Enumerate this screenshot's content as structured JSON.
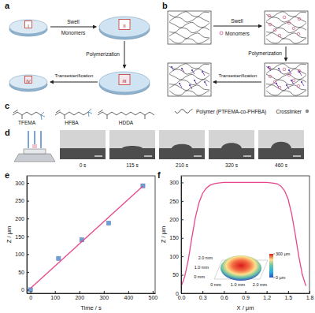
{
  "panels": {
    "a": {
      "label": "a",
      "stages": [
        "I",
        "II",
        "III",
        "IV"
      ],
      "steps": {
        "swell": "Swell",
        "monomers": "Monomers",
        "polymerization": "Polymerization",
        "transesterification": "Transesterification"
      }
    },
    "b": {
      "label": "b",
      "steps": {
        "swell": "Swell",
        "monomers": "Monomers",
        "polymerization": "Polymerization",
        "transesterification": "Transesterification"
      }
    },
    "c": {
      "label": "c",
      "items": [
        "TFEMA",
        "HFBA",
        "HDDA",
        "Polymer (PTFEMA-co-PHFBA)",
        "Crosslinker"
      ]
    },
    "d": {
      "label": "d",
      "frames": [
        "0 s",
        "115 s",
        "210 s",
        "320 s",
        "460 s"
      ]
    },
    "e": {
      "label": "e"
    },
    "f": {
      "label": "f",
      "inset": {
        "y_labels": [
          "2.0 mm",
          "1.0 mm",
          "0 mm"
        ],
        "x_labels": [
          "0 mm",
          "1.0 mm",
          "2.0 mm"
        ],
        "colorbar": {
          "range": [
            0,
            300
          ],
          "ticks": [
            {
              "value": 300,
              "label": "300 μm"
            },
            {
              "value": 0,
              "label": "0 μm"
            }
          ]
        }
      }
    }
  },
  "chart_data": [
    {
      "type": "scatter",
      "x_label": "Time / s",
      "y_label": "Z / μm",
      "xlim": [
        -15,
        510
      ],
      "xticks": [
        0,
        100,
        200,
        300,
        400,
        500
      ],
      "ylim": [
        -10,
        320
      ],
      "yticks": [
        0,
        50,
        100,
        150,
        200,
        250,
        300
      ],
      "series": [
        {
          "type": "scatter",
          "marker": "square",
          "color": "#6f9fd8",
          "x": [
            0,
            115,
            210,
            320,
            460
          ],
          "values": [
            0,
            88,
            140,
            187,
            292
          ]
        },
        {
          "type": "line",
          "color": "#e8458b",
          "x": [
            0,
            460
          ],
          "values": [
            4,
            291
          ]
        }
      ]
    },
    {
      "type": "line",
      "x_label": "X / μm",
      "y_label": "Z / μm",
      "xlim": [
        0,
        1.8
      ],
      "xticks": [
        {
          "value": 0,
          "label": "0.0"
        },
        0.3,
        0.6,
        0.9,
        1.2,
        1.5,
        1.8
      ],
      "ylim": [
        0,
        318
      ],
      "yticks": [
        0,
        50,
        100,
        150,
        200,
        250,
        300
      ],
      "series": [
        {
          "type": "line",
          "color": "#e8458b",
          "x": [
            0,
            0.05,
            0.1,
            0.15,
            0.2,
            0.25,
            0.3,
            0.35,
            0.4,
            0.45,
            0.5,
            0.6,
            0.7,
            0.8,
            0.9,
            1.0,
            1.1,
            1.2,
            1.3,
            1.35,
            1.4,
            1.45,
            1.5,
            1.55,
            1.6,
            1.65,
            1.7,
            1.75
          ],
          "values": [
            18,
            45,
            90,
            150,
            205,
            245,
            270,
            284,
            292,
            296,
            298,
            300,
            300,
            300,
            300,
            300,
            300,
            300,
            298,
            296,
            290,
            278,
            255,
            215,
            160,
            100,
            50,
            20
          ]
        }
      ]
    }
  ]
}
